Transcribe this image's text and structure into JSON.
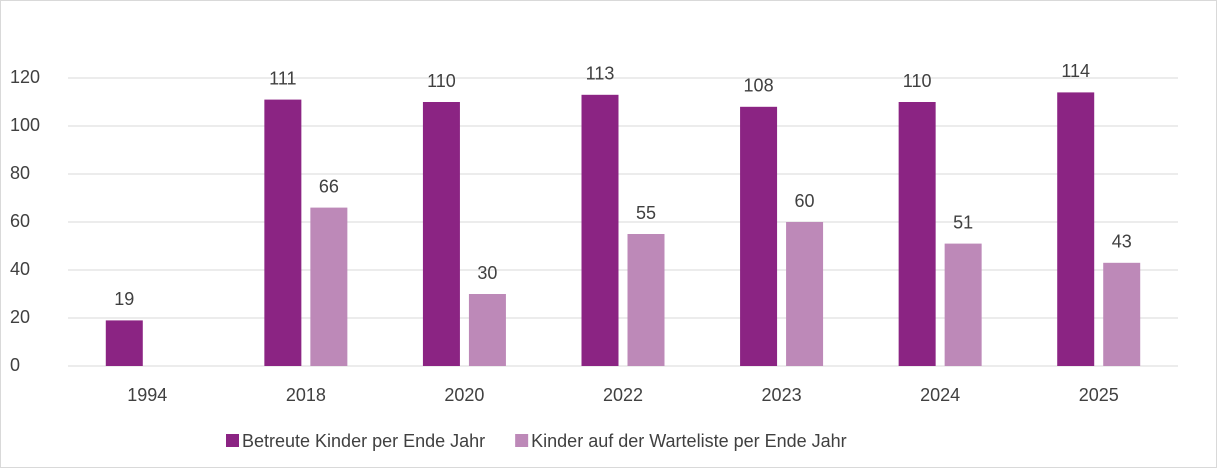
{
  "chart_data": {
    "type": "bar",
    "categories": [
      "1994",
      "2018",
      "2020",
      "2022",
      "2023",
      "2024",
      "2025"
    ],
    "series": [
      {
        "name": "Betreute Kinder per Ende Jahr",
        "color": "#8b2483",
        "values": [
          19,
          111,
          110,
          113,
          108,
          110,
          114
        ]
      },
      {
        "name": "Kinder auf der Warteliste per Ende Jahr",
        "color": "#bd89b8",
        "values": [
          null,
          66,
          30,
          55,
          60,
          51,
          43
        ]
      }
    ],
    "ylim": [
      0,
      120
    ],
    "yticks": [
      0,
      20,
      40,
      60,
      80,
      100,
      120
    ],
    "grid": true,
    "legend": "bottom"
  }
}
